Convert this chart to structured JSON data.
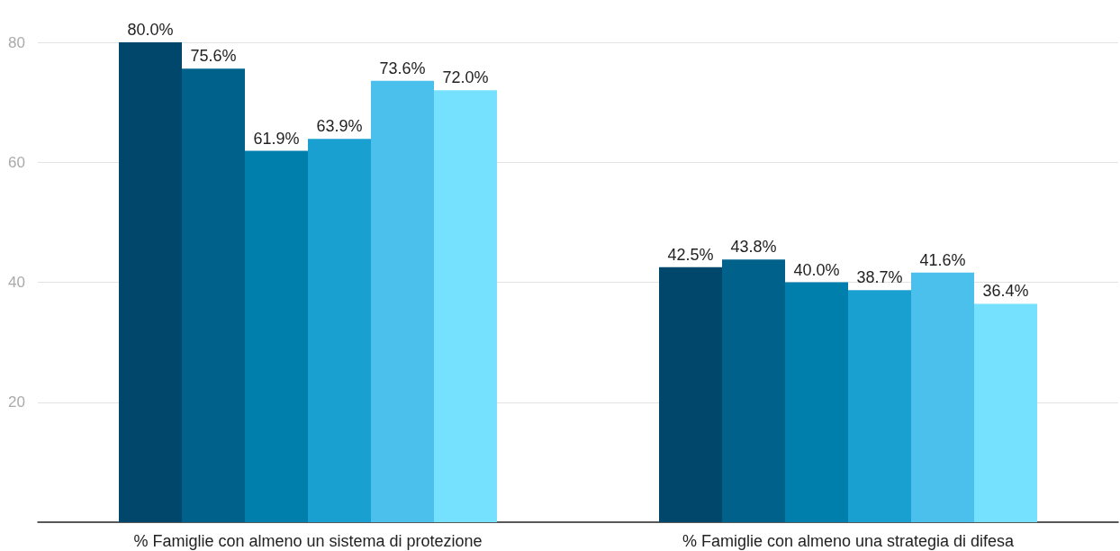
{
  "chart_data": {
    "type": "bar",
    "categories": [
      "% Famiglie con almeno un sistema di protezione",
      "% Famiglie con almeno una strategia di difesa"
    ],
    "series": [
      {
        "color": "#00476b",
        "values": [
          80.0,
          42.5
        ],
        "value_labels": [
          "80.0%",
          "42.5%"
        ]
      },
      {
        "color": "#00618a",
        "values": [
          75.6,
          43.8
        ],
        "value_labels": [
          "75.6%",
          "43.8%"
        ]
      },
      {
        "color": "#007fad",
        "values": [
          61.9,
          40.0
        ],
        "value_labels": [
          "61.9%",
          "40.0%"
        ]
      },
      {
        "color": "#1aa0d0",
        "values": [
          63.9,
          38.7
        ],
        "value_labels": [
          "63.9%",
          "38.7%"
        ]
      },
      {
        "color": "#4bc0ec",
        "values": [
          73.6,
          41.6
        ],
        "value_labels": [
          "73.6%",
          "41.6%"
        ]
      },
      {
        "color": "#75e1ff",
        "values": [
          72.0,
          36.4
        ],
        "value_labels": [
          "72.0%",
          "36.4%"
        ]
      }
    ],
    "ylim": [
      0,
      80
    ],
    "yticks": [
      20,
      40,
      60,
      80
    ],
    "grid": "y"
  }
}
